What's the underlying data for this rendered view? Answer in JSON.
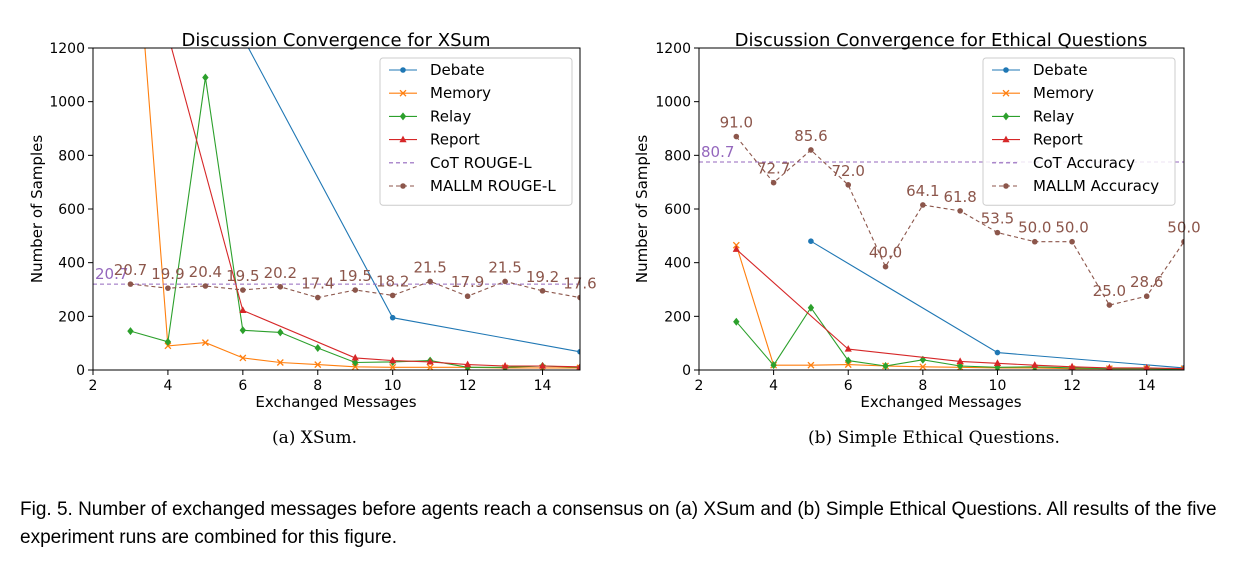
{
  "chart_data": [
    {
      "type": "line",
      "title": "Discussion Convergence for XSum",
      "xlabel": "Exchanged Messages",
      "ylabel": "Number of Samples",
      "xlim": [
        2,
        15
      ],
      "ylim": [
        0,
        1200
      ],
      "xticks": [
        2,
        4,
        6,
        8,
        10,
        12,
        14
      ],
      "yticks": [
        0,
        200,
        400,
        600,
        800,
        1000,
        1200
      ],
      "grid": false,
      "legend_position": "top-right",
      "series": [
        {
          "name": "Debate",
          "color": "#1f77b4",
          "marker": "circle",
          "x": [
            5,
            10,
            15
          ],
          "y": [
            1500,
            195,
            68
          ]
        },
        {
          "name": "Memory",
          "color": "#ff7f0e",
          "marker": "x",
          "x": [
            3,
            4,
            5,
            6,
            7,
            8,
            9,
            10,
            11,
            12,
            13,
            14,
            15
          ],
          "y": [
            1900,
            90,
            102,
            45,
            28,
            20,
            12,
            10,
            10,
            10,
            8,
            8,
            8
          ]
        },
        {
          "name": "Relay",
          "color": "#2ca02c",
          "marker": "diamond",
          "x": [
            3,
            4,
            5,
            6,
            7,
            8,
            9,
            10,
            11,
            12,
            13,
            14,
            15
          ],
          "y": [
            145,
            105,
            1090,
            148,
            140,
            82,
            28,
            30,
            35,
            10,
            10,
            15,
            10
          ]
        },
        {
          "name": "Report",
          "color": "#d62728",
          "marker": "triangle",
          "x": [
            4,
            6,
            9,
            10,
            11,
            12,
            13,
            14,
            15
          ],
          "y": [
            1250,
            222,
            45,
            35,
            30,
            20,
            15,
            15,
            12
          ]
        },
        {
          "name": "CoT ROUGE-L",
          "color": "#9467bd",
          "style": "dashed",
          "constant": 320,
          "label_text": "20.7"
        },
        {
          "name": "MALLM ROUGE-L",
          "color": "#8c564b",
          "marker": "circle",
          "style": "dashed",
          "x": [
            3,
            4,
            5,
            6,
            7,
            8,
            9,
            10,
            11,
            12,
            13,
            14,
            15
          ],
          "y": [
            320,
            305,
            313,
            298,
            310,
            270,
            298,
            278,
            330,
            275,
            330,
            295,
            270
          ],
          "labels": [
            "20.7",
            "19.9",
            "20.4",
            "19.5",
            "20.2",
            "17.4",
            "19.5",
            "18.2",
            "21.5",
            "17.9",
            "21.5",
            "19.2",
            "17.6"
          ]
        }
      ]
    },
    {
      "type": "line",
      "title": "Discussion Convergence for Ethical Questions",
      "xlabel": "Exchanged Messages",
      "ylabel": "Number of Samples",
      "xlim": [
        2,
        15
      ],
      "ylim": [
        0,
        1200
      ],
      "xticks": [
        2,
        4,
        6,
        8,
        10,
        12,
        14
      ],
      "yticks": [
        0,
        200,
        400,
        600,
        800,
        1000,
        1200
      ],
      "grid": false,
      "legend_position": "top-right",
      "series": [
        {
          "name": "Debate",
          "color": "#1f77b4",
          "marker": "circle",
          "x": [
            5,
            10,
            15
          ],
          "y": [
            480,
            65,
            8
          ]
        },
        {
          "name": "Memory",
          "color": "#ff7f0e",
          "marker": "x",
          "x": [
            3,
            4,
            5,
            6,
            7,
            8,
            9,
            10,
            11,
            12,
            13,
            14,
            15
          ],
          "y": [
            465,
            18,
            18,
            20,
            15,
            12,
            10,
            8,
            8,
            5,
            5,
            5,
            5
          ]
        },
        {
          "name": "Relay",
          "color": "#2ca02c",
          "marker": "diamond",
          "x": [
            3,
            4,
            5,
            6,
            7,
            8,
            9,
            10,
            11,
            12,
            13,
            14,
            15
          ],
          "y": [
            180,
            18,
            232,
            35,
            15,
            38,
            15,
            10,
            12,
            8,
            5,
            5,
            3
          ]
        },
        {
          "name": "Report",
          "color": "#d62728",
          "marker": "triangle",
          "x": [
            3,
            6,
            9,
            10,
            11,
            12,
            13,
            14,
            15
          ],
          "y": [
            450,
            78,
            32,
            25,
            18,
            12,
            8,
            8,
            5
          ]
        },
        {
          "name": "CoT Accuracy",
          "color": "#9467bd",
          "style": "dashed",
          "constant": 775,
          "label_text": "80.7"
        },
        {
          "name": "MALLM Accuracy",
          "color": "#8c564b",
          "marker": "circle",
          "style": "dashed",
          "x": [
            3,
            4,
            5,
            6,
            7,
            8,
            9,
            10,
            11,
            12,
            13,
            14,
            15
          ],
          "y": [
            870,
            698,
            820,
            690,
            385,
            615,
            593,
            512,
            478,
            478,
            242,
            275,
            478
          ],
          "labels": [
            "91.0",
            "72.7",
            "85.6",
            "72.0",
            "40.0",
            "64.1",
            "61.8",
            "53.5",
            "50.0",
            "50.0",
            "25.0",
            "28.6",
            "50.0"
          ]
        }
      ]
    }
  ],
  "subcaptions": [
    "(a)  XSum.",
    "(b)  Simple Ethical Questions."
  ],
  "caption": "Fig. 5.  Number of exchanged messages before agents reach a consensus on (a) XSum and (b) Simple Ethical Questions. All results of the five experiment runs are combined for this figure."
}
